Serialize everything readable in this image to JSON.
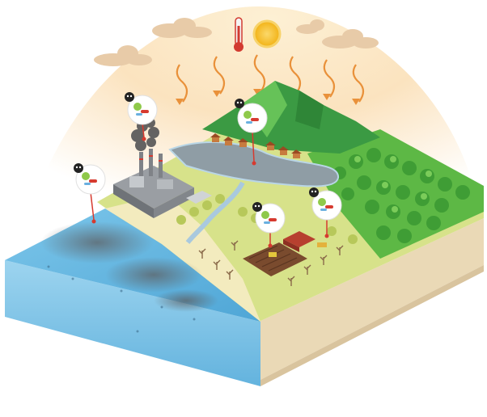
{
  "scene": {
    "type": "isometric environmental illustration",
    "icons": [
      "thermometer-icon",
      "sun-icon",
      "skull-icon",
      "bacteria-icon",
      "factory-icon",
      "cloud-icon"
    ],
    "colors": {
      "sky_top": "#fde9c9",
      "sun": "#f7c21a",
      "sun_glow": "#fbd466",
      "ray": "#e9913a",
      "cloud": "#e5c7a4",
      "sea": "#62b7e0",
      "sea_dark": "#3d8fc2",
      "sea_side": "#86c8ea",
      "sand": "#f2e8b8",
      "ground_side": "#ede0c3",
      "ground_side_dark": "#d8c7a4",
      "grass": "#c8d96a",
      "forest": "#4caf3a",
      "forest_dark": "#2e8b2e",
      "mountain": "#3e9c44",
      "mountain_light": "#6cc45a",
      "lake": "#8a9aa3",
      "pin": "#d63a2f",
      "pollution": "#6e6f72",
      "skull_badge": "#222222"
    },
    "pollution_markers": 5
  }
}
